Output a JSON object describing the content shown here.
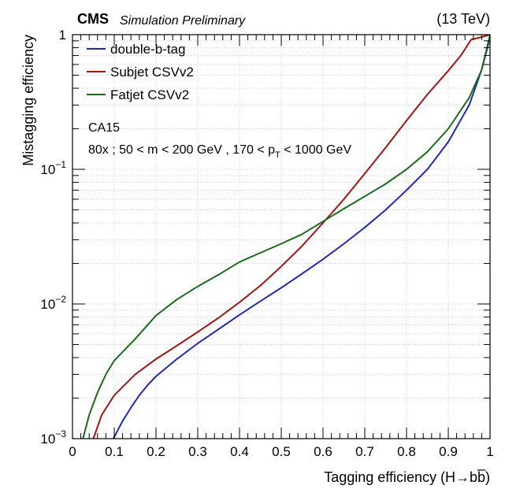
{
  "header": {
    "experiment": "CMS",
    "status": "Simulation Preliminary",
    "energy": "(13 TeV)"
  },
  "annotations": {
    "algo": "CA15",
    "selection_prefix": "80x ; 50 < m < 200 GeV , 170 < p",
    "selection_sub": "T",
    "selection_suffix": " < 1000 GeV"
  },
  "chart_data": {
    "type": "line",
    "xlabel": "Tagging efficiency (H→bb̅)",
    "ylabel": "Mistagging efficiency",
    "xlim": [
      0,
      1
    ],
    "ylim": [
      0.001,
      1
    ],
    "yscale": "log",
    "grid": true,
    "legend_position": "top-left",
    "x_ticks": [
      "0",
      "0.1",
      "0.2",
      "0.3",
      "0.4",
      "0.5",
      "0.6",
      "0.7",
      "0.8",
      "0.9",
      "1"
    ],
    "y_ticks": [
      {
        "value": 0.001,
        "base": "10",
        "exp": "−3"
      },
      {
        "value": 0.01,
        "base": "10",
        "exp": "−2"
      },
      {
        "value": 0.1,
        "base": "10",
        "exp": "−1"
      },
      {
        "value": 1,
        "base": "1",
        "exp": ""
      }
    ],
    "series": [
      {
        "name": "double-b-tag",
        "color": "#1f2ab5",
        "points": [
          [
            0.098,
            0.001
          ],
          [
            0.12,
            0.00135
          ],
          [
            0.14,
            0.0017
          ],
          [
            0.16,
            0.0021
          ],
          [
            0.18,
            0.0025
          ],
          [
            0.2,
            0.0029
          ],
          [
            0.25,
            0.0039
          ],
          [
            0.3,
            0.0051
          ],
          [
            0.35,
            0.0065
          ],
          [
            0.4,
            0.0083
          ],
          [
            0.45,
            0.0105
          ],
          [
            0.5,
            0.0132
          ],
          [
            0.55,
            0.0168
          ],
          [
            0.6,
            0.0215
          ],
          [
            0.65,
            0.028
          ],
          [
            0.7,
            0.037
          ],
          [
            0.75,
            0.05
          ],
          [
            0.8,
            0.07
          ],
          [
            0.85,
            0.1
          ],
          [
            0.9,
            0.16
          ],
          [
            0.95,
            0.3
          ],
          [
            0.98,
            0.55
          ],
          [
            1.0,
            0.95
          ]
        ]
      },
      {
        "name": "Subjet CSVv2",
        "color": "#a01414",
        "points": [
          [
            0.05,
            0.001
          ],
          [
            0.07,
            0.0015
          ],
          [
            0.1,
            0.0021
          ],
          [
            0.15,
            0.003
          ],
          [
            0.2,
            0.0039
          ],
          [
            0.25,
            0.0049
          ],
          [
            0.3,
            0.0062
          ],
          [
            0.35,
            0.0079
          ],
          [
            0.4,
            0.0103
          ],
          [
            0.45,
            0.0137
          ],
          [
            0.5,
            0.019
          ],
          [
            0.55,
            0.027
          ],
          [
            0.6,
            0.04
          ],
          [
            0.65,
            0.06
          ],
          [
            0.7,
            0.093
          ],
          [
            0.75,
            0.145
          ],
          [
            0.8,
            0.23
          ],
          [
            0.85,
            0.36
          ],
          [
            0.9,
            0.54
          ],
          [
            0.93,
            0.7
          ],
          [
            0.955,
            0.92
          ],
          [
            0.98,
            0.96
          ],
          [
            1.0,
            1.0
          ]
        ]
      },
      {
        "name": "Fatjet CSVv2",
        "color": "#1a6b1a",
        "points": [
          [
            0.025,
            0.001
          ],
          [
            0.04,
            0.0015
          ],
          [
            0.06,
            0.0022
          ],
          [
            0.08,
            0.003
          ],
          [
            0.1,
            0.0038
          ],
          [
            0.15,
            0.0055
          ],
          [
            0.2,
            0.0082
          ],
          [
            0.25,
            0.0108
          ],
          [
            0.3,
            0.0135
          ],
          [
            0.35,
            0.0165
          ],
          [
            0.4,
            0.0205
          ],
          [
            0.45,
            0.024
          ],
          [
            0.5,
            0.028
          ],
          [
            0.55,
            0.033
          ],
          [
            0.6,
            0.041
          ],
          [
            0.65,
            0.051
          ],
          [
            0.7,
            0.063
          ],
          [
            0.75,
            0.078
          ],
          [
            0.8,
            0.1
          ],
          [
            0.85,
            0.135
          ],
          [
            0.9,
            0.2
          ],
          [
            0.95,
            0.34
          ],
          [
            0.98,
            0.55
          ],
          [
            1.0,
            1.0
          ]
        ]
      }
    ]
  }
}
